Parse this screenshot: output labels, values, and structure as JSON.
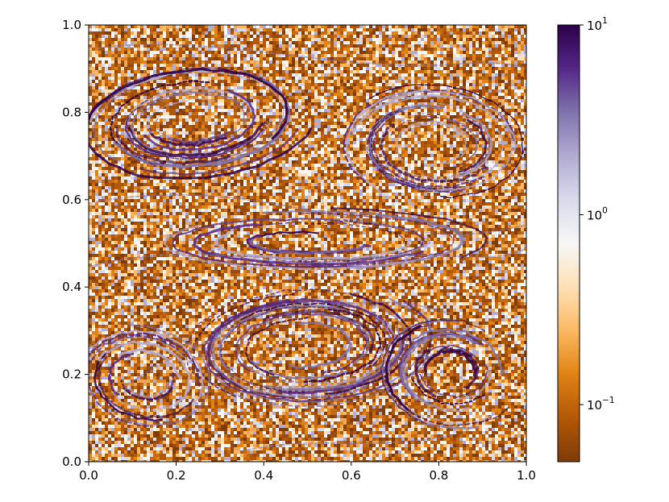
{
  "chart_data": {
    "type": "heatmap",
    "title": "",
    "xlabel": "",
    "ylabel": "",
    "xlim": [
      0.0,
      1.0
    ],
    "ylim": [
      0.0,
      1.0
    ],
    "x_ticks": [
      "0.0",
      "0.2",
      "0.4",
      "0.6",
      "0.8",
      "1.0"
    ],
    "y_ticks": [
      "0.0",
      "0.2",
      "0.4",
      "0.6",
      "0.8",
      "1.0"
    ],
    "colorbar": {
      "scale": "log",
      "range": [
        0.05,
        10
      ],
      "ticks": [
        {
          "value": 10,
          "base": "10",
          "exp": "1"
        },
        {
          "value": 1,
          "base": "10",
          "exp": "0"
        },
        {
          "value": 0.1,
          "base": "10",
          "exp": "−1"
        }
      ],
      "colormap": "PuOr",
      "colors": [
        "#7f3b08",
        "#b35806",
        "#e08214",
        "#fdb863",
        "#fee0b6",
        "#f7f7f7",
        "#d8daeb",
        "#b2abd2",
        "#8073ac",
        "#542788",
        "#2d004b"
      ]
    },
    "grid": false
  }
}
